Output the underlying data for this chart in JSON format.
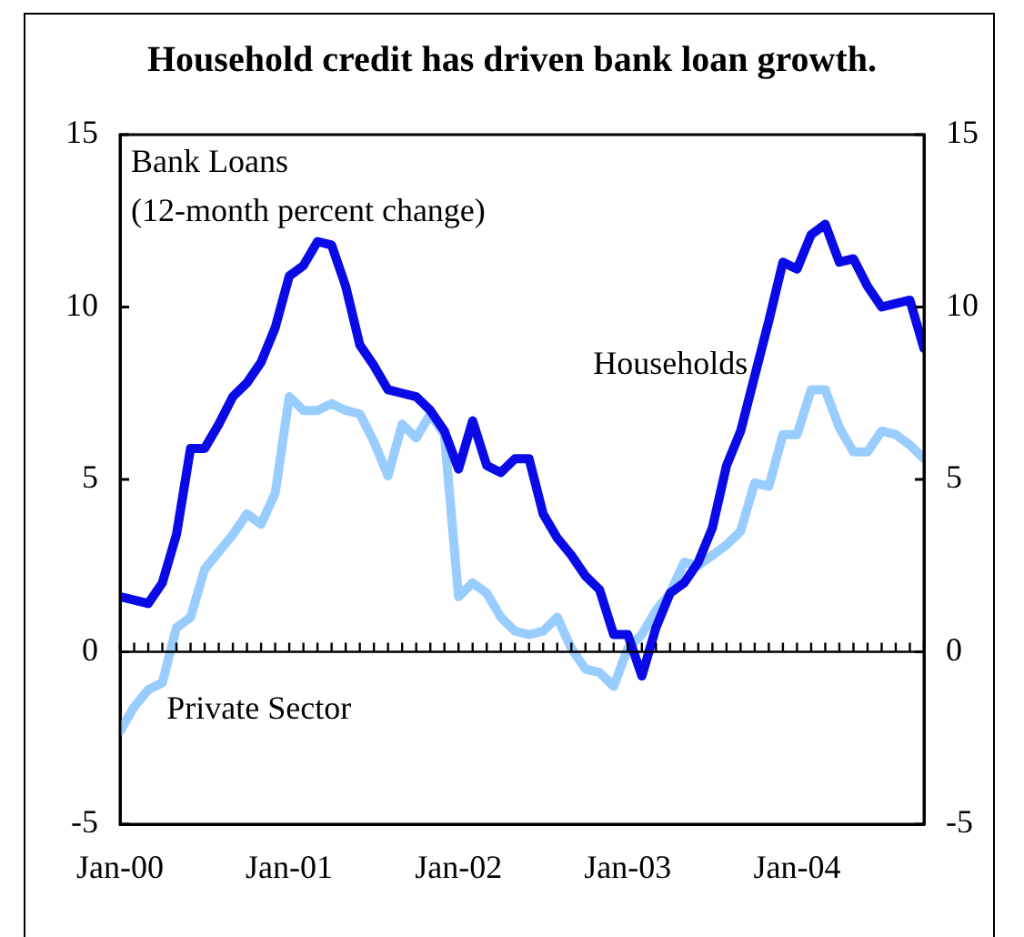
{
  "chart_data": {
    "type": "line",
    "title": "Household credit has driven bank loan growth.",
    "annotations": [
      "Bank Loans",
      "(12-month percent change)"
    ],
    "x": [
      "2000-01",
      "2000-02",
      "2000-03",
      "2000-04",
      "2000-05",
      "2000-06",
      "2000-07",
      "2000-08",
      "2000-09",
      "2000-10",
      "2000-11",
      "2000-12",
      "2001-01",
      "2001-02",
      "2001-03",
      "2001-04",
      "2001-05",
      "2001-06",
      "2001-07",
      "2001-08",
      "2001-09",
      "2001-10",
      "2001-11",
      "2001-12",
      "2002-01",
      "2002-02",
      "2002-03",
      "2002-04",
      "2002-05",
      "2002-06",
      "2002-07",
      "2002-08",
      "2002-09",
      "2002-10",
      "2002-11",
      "2002-12",
      "2003-01",
      "2003-02",
      "2003-03",
      "2003-04",
      "2003-05",
      "2003-06",
      "2003-07",
      "2003-08",
      "2003-09",
      "2003-10",
      "2003-11",
      "2003-12",
      "2004-01",
      "2004-02",
      "2004-03",
      "2004-04",
      "2004-05",
      "2004-06",
      "2004-07",
      "2004-08",
      "2004-09",
      "2004-10"
    ],
    "series": [
      {
        "name": "Households",
        "color": "#0a0ae6",
        "values": [
          1.6,
          1.5,
          1.4,
          2.0,
          3.4,
          5.9,
          5.9,
          6.6,
          7.4,
          7.8,
          8.4,
          9.4,
          10.9,
          11.2,
          11.9,
          11.8,
          10.6,
          8.9,
          8.3,
          7.6,
          7.5,
          7.4,
          7.0,
          6.4,
          5.3,
          6.7,
          5.4,
          5.2,
          5.6,
          5.6,
          4.0,
          3.3,
          2.8,
          2.2,
          1.8,
          0.5,
          0.5,
          -0.7,
          0.7,
          1.7,
          2.0,
          2.6,
          3.6,
          5.4,
          6.4,
          8.0,
          9.6,
          11.3,
          11.1,
          12.1,
          12.4,
          11.3,
          11.4,
          10.6,
          10.0,
          10.1,
          10.2,
          8.8
        ]
      },
      {
        "name": "Private Sector",
        "color": "#99ccff",
        "values": [
          -2.3,
          -1.6,
          -1.1,
          -0.9,
          0.7,
          1.0,
          2.4,
          2.9,
          3.4,
          4.0,
          3.7,
          4.6,
          7.4,
          7.0,
          7.0,
          7.2,
          7.0,
          6.9,
          6.1,
          5.1,
          6.6,
          6.2,
          6.9,
          6.3,
          1.6,
          2.0,
          1.7,
          1.0,
          0.6,
          0.5,
          0.6,
          1.0,
          0.1,
          -0.5,
          -0.6,
          -1.0,
          0.1,
          0.5,
          1.2,
          1.7,
          2.6,
          2.5,
          2.8,
          3.1,
          3.5,
          4.9,
          4.8,
          6.3,
          6.3,
          7.6,
          7.6,
          6.5,
          5.8,
          5.8,
          6.4,
          6.3,
          6.0,
          5.6
        ]
      }
    ],
    "xlim": [
      "2000-01",
      "2004-10"
    ],
    "xticks": [
      {
        "value": "2000-01",
        "label": "Jan-00"
      },
      {
        "value": "2001-01",
        "label": "Jan-01"
      },
      {
        "value": "2002-01",
        "label": "Jan-02"
      },
      {
        "value": "2003-01",
        "label": "Jan-03"
      },
      {
        "value": "2004-01",
        "label": "Jan-04"
      }
    ],
    "ylim": [
      -5,
      15
    ],
    "yticks": [
      -5,
      0,
      5,
      10,
      15
    ],
    "y2lim": [
      -5,
      15
    ],
    "y2ticks": [
      -5,
      0,
      5,
      10,
      15
    ],
    "ref_lines": [
      {
        "axis": "y",
        "value": 0,
        "color": "#000000"
      }
    ],
    "grid": false,
    "legend": false,
    "marker": "none",
    "line_style": "solid"
  }
}
